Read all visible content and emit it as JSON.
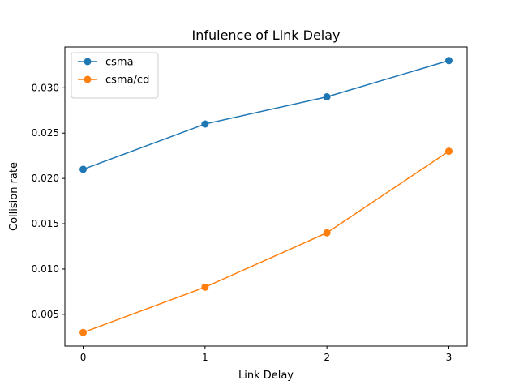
{
  "chart_data": {
    "type": "line",
    "title": "Infulence of Link Delay",
    "xlabel": "Link Delay",
    "ylabel": "Collision rate",
    "x": [
      0,
      1,
      2,
      3
    ],
    "xticks": [
      0,
      1,
      2,
      3
    ],
    "xlim": [
      -0.15,
      3.15
    ],
    "yticks": [
      0.005,
      0.01,
      0.015,
      0.02,
      0.025,
      0.03
    ],
    "yticklabels": [
      "0.005",
      "0.010",
      "0.015",
      "0.020",
      "0.025",
      "0.030"
    ],
    "ylim": [
      0.0015,
      0.0345
    ],
    "grid": false,
    "legend_position": "upper-left",
    "series": [
      {
        "name": "csma",
        "color": "#1f77b4",
        "values": [
          0.021,
          0.026,
          0.029,
          0.033
        ]
      },
      {
        "name": "csma/cd",
        "color": "#ff7f0e",
        "values": [
          0.003,
          0.008,
          0.014,
          0.023
        ]
      }
    ]
  }
}
